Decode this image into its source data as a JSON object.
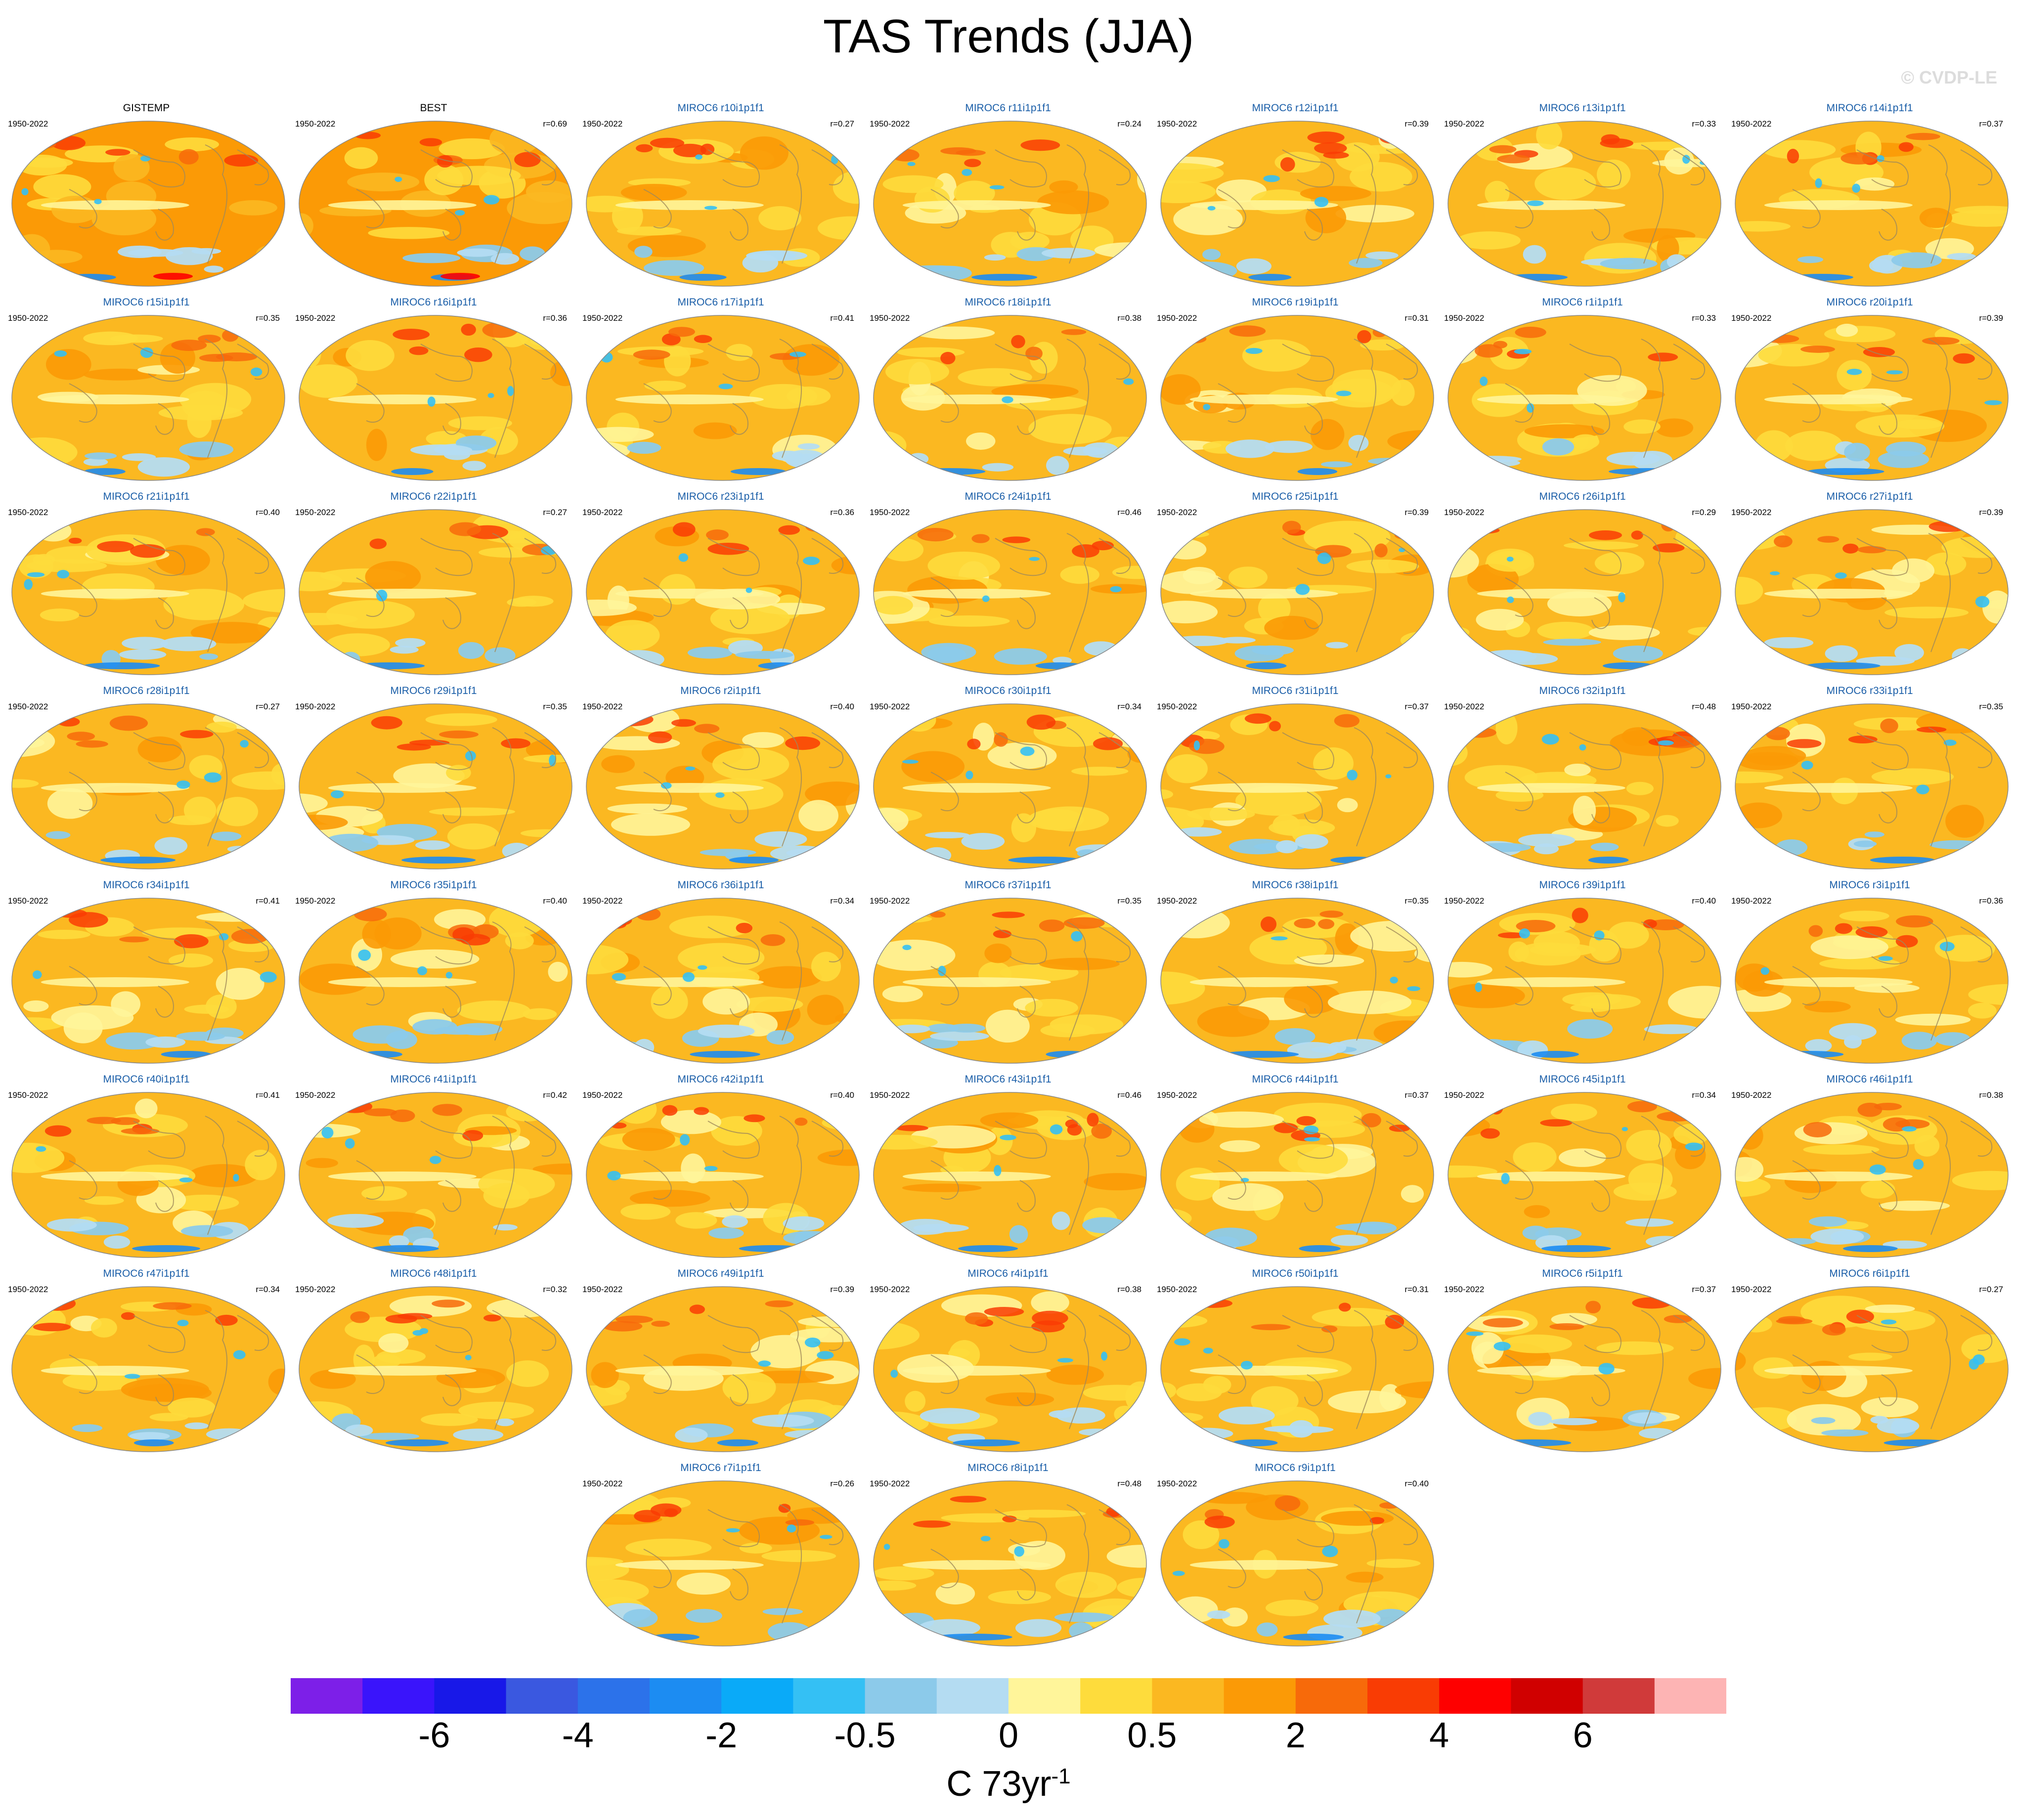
{
  "title": "TAS Trends (JJA)",
  "watermark": "© CVDP-LE",
  "colors": {
    "levels": [
      "#7d1fe8",
      "#3a14fb",
      "#1818e8",
      "#3a58e0",
      "#2c72ea",
      "#1c8cf2",
      "#0aaaf8",
      "#34c0f4",
      "#8ccaea",
      "#b4dcf2",
      "#fff59a",
      "#fedc3c",
      "#fbb821",
      "#fb9a06",
      "#f76a0a",
      "#f93c04",
      "#fe0000",
      "#d00000",
      "#d03a3a",
      "#fdb4b4"
    ],
    "continent_outline": "#a08a5a",
    "title_model": "#1a5ea8"
  },
  "chart_data": {
    "type": "heatmap",
    "colorbar": {
      "tick_labels": [
        "-6",
        "-4",
        "-2",
        "-0.5",
        "0",
        "0.5",
        "2",
        "4",
        "6"
      ],
      "units_base": "C 73yr",
      "units_exp": "-1"
    },
    "panels": [
      {
        "title": "GISTEMP",
        "period": "1950-2022",
        "r": ""
      },
      {
        "title": "BEST",
        "period": "1950-2022",
        "r": "r=0.69"
      },
      {
        "title": "MIROC6 r10i1p1f1",
        "period": "1950-2022",
        "r": "r=0.27"
      },
      {
        "title": "MIROC6 r11i1p1f1",
        "period": "1950-2022",
        "r": "r=0.24"
      },
      {
        "title": "MIROC6 r12i1p1f1",
        "period": "1950-2022",
        "r": "r=0.39"
      },
      {
        "title": "MIROC6 r13i1p1f1",
        "period": "1950-2022",
        "r": "r=0.33"
      },
      {
        "title": "MIROC6 r14i1p1f1",
        "period": "1950-2022",
        "r": "r=0.37"
      },
      {
        "title": "MIROC6 r15i1p1f1",
        "period": "1950-2022",
        "r": "r=0.35"
      },
      {
        "title": "MIROC6 r16i1p1f1",
        "period": "1950-2022",
        "r": "r=0.36"
      },
      {
        "title": "MIROC6 r17i1p1f1",
        "period": "1950-2022",
        "r": "r=0.41"
      },
      {
        "title": "MIROC6 r18i1p1f1",
        "period": "1950-2022",
        "r": "r=0.38"
      },
      {
        "title": "MIROC6 r19i1p1f1",
        "period": "1950-2022",
        "r": "r=0.31"
      },
      {
        "title": "MIROC6 r1i1p1f1",
        "period": "1950-2022",
        "r": "r=0.33"
      },
      {
        "title": "MIROC6 r20i1p1f1",
        "period": "1950-2022",
        "r": "r=0.39"
      },
      {
        "title": "MIROC6 r21i1p1f1",
        "period": "1950-2022",
        "r": "r=0.40"
      },
      {
        "title": "MIROC6 r22i1p1f1",
        "period": "1950-2022",
        "r": "r=0.27"
      },
      {
        "title": "MIROC6 r23i1p1f1",
        "period": "1950-2022",
        "r": "r=0.36"
      },
      {
        "title": "MIROC6 r24i1p1f1",
        "period": "1950-2022",
        "r": "r=0.46"
      },
      {
        "title": "MIROC6 r25i1p1f1",
        "period": "1950-2022",
        "r": "r=0.39"
      },
      {
        "title": "MIROC6 r26i1p1f1",
        "period": "1950-2022",
        "r": "r=0.29"
      },
      {
        "title": "MIROC6 r27i1p1f1",
        "period": "1950-2022",
        "r": "r=0.39"
      },
      {
        "title": "MIROC6 r28i1p1f1",
        "period": "1950-2022",
        "r": "r=0.27"
      },
      {
        "title": "MIROC6 r29i1p1f1",
        "period": "1950-2022",
        "r": "r=0.35"
      },
      {
        "title": "MIROC6 r2i1p1f1",
        "period": "1950-2022",
        "r": "r=0.40"
      },
      {
        "title": "MIROC6 r30i1p1f1",
        "period": "1950-2022",
        "r": "r=0.34"
      },
      {
        "title": "MIROC6 r31i1p1f1",
        "period": "1950-2022",
        "r": "r=0.37"
      },
      {
        "title": "MIROC6 r32i1p1f1",
        "period": "1950-2022",
        "r": "r=0.48"
      },
      {
        "title": "MIROC6 r33i1p1f1",
        "period": "1950-2022",
        "r": "r=0.35"
      },
      {
        "title": "MIROC6 r34i1p1f1",
        "period": "1950-2022",
        "r": "r=0.41"
      },
      {
        "title": "MIROC6 r35i1p1f1",
        "period": "1950-2022",
        "r": "r=0.40"
      },
      {
        "title": "MIROC6 r36i1p1f1",
        "period": "1950-2022",
        "r": "r=0.34"
      },
      {
        "title": "MIROC6 r37i1p1f1",
        "period": "1950-2022",
        "r": "r=0.35"
      },
      {
        "title": "MIROC6 r38i1p1f1",
        "period": "1950-2022",
        "r": "r=0.35"
      },
      {
        "title": "MIROC6 r39i1p1f1",
        "period": "1950-2022",
        "r": "r=0.40"
      },
      {
        "title": "MIROC6 r3i1p1f1",
        "period": "1950-2022",
        "r": "r=0.36"
      },
      {
        "title": "MIROC6 r40i1p1f1",
        "period": "1950-2022",
        "r": "r=0.41"
      },
      {
        "title": "MIROC6 r41i1p1f1",
        "period": "1950-2022",
        "r": "r=0.42"
      },
      {
        "title": "MIROC6 r42i1p1f1",
        "period": "1950-2022",
        "r": "r=0.40"
      },
      {
        "title": "MIROC6 r43i1p1f1",
        "period": "1950-2022",
        "r": "r=0.46"
      },
      {
        "title": "MIROC6 r44i1p1f1",
        "period": "1950-2022",
        "r": "r=0.37"
      },
      {
        "title": "MIROC6 r45i1p1f1",
        "period": "1950-2022",
        "r": "r=0.34"
      },
      {
        "title": "MIROC6 r46i1p1f1",
        "period": "1950-2022",
        "r": "r=0.38"
      },
      {
        "title": "MIROC6 r47i1p1f1",
        "period": "1950-2022",
        "r": "r=0.34"
      },
      {
        "title": "MIROC6 r48i1p1f1",
        "period": "1950-2022",
        "r": "r=0.32"
      },
      {
        "title": "MIROC6 r49i1p1f1",
        "period": "1950-2022",
        "r": "r=0.39"
      },
      {
        "title": "MIROC6 r4i1p1f1",
        "period": "1950-2022",
        "r": "r=0.38"
      },
      {
        "title": "MIROC6 r50i1p1f1",
        "period": "1950-2022",
        "r": "r=0.31"
      },
      {
        "title": "MIROC6 r5i1p1f1",
        "period": "1950-2022",
        "r": "r=0.37"
      },
      {
        "title": "MIROC6 r6i1p1f1",
        "period": "1950-2022",
        "r": "r=0.27"
      },
      {
        "title": "MIROC6 r7i1p1f1",
        "period": "1950-2022",
        "r": "r=0.26"
      },
      {
        "title": "MIROC6 r8i1p1f1",
        "period": "1950-2022",
        "r": "r=0.48"
      },
      {
        "title": "MIROC6 r9i1p1f1",
        "period": "1950-2022",
        "r": "r=0.40"
      }
    ]
  }
}
